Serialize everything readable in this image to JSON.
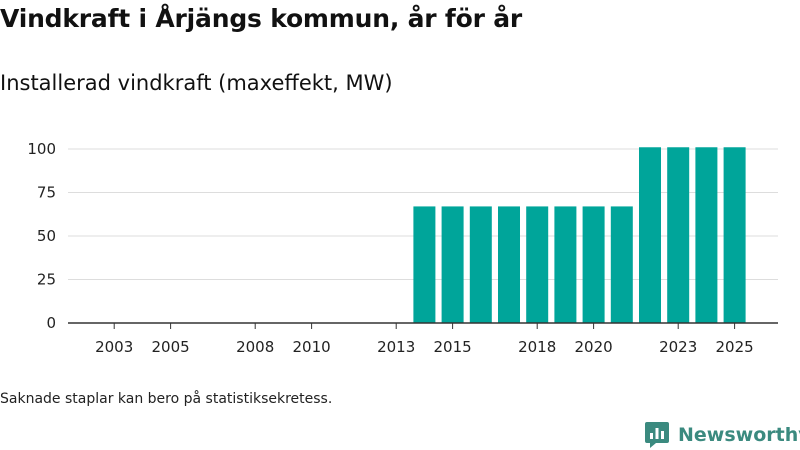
{
  "title": "Vindkraft i Årjängs kommun, år för år",
  "subtitle": "Installerad vindkraft (maxeffekt, MW)",
  "footnote": "Saknade staplar kan bero på statistiksekretess.",
  "brand": {
    "name": "Newsworthy",
    "icon": "bar-chart-logo-icon"
  },
  "colors": {
    "bar": "#00a59a",
    "grid": "#dddddd",
    "axis": "#333333",
    "brand": "#3b8a7f"
  },
  "chart_data": {
    "type": "bar",
    "title": "Vindkraft i Årjängs kommun, år för år",
    "ylabel": "Installerad vindkraft (maxeffekt, MW)",
    "xlabel": "",
    "ylim": [
      0,
      100
    ],
    "yticks": [
      0,
      25,
      50,
      75,
      100
    ],
    "x_tick_labels": [
      "2003",
      "2005",
      "2008",
      "2010",
      "2013",
      "2015",
      "2018",
      "2020",
      "2023",
      "2025"
    ],
    "categories": [
      "2002",
      "2003",
      "2004",
      "2005",
      "2006",
      "2007",
      "2008",
      "2009",
      "2010",
      "2011",
      "2012",
      "2013",
      "2014",
      "2015",
      "2016",
      "2017",
      "2018",
      "2019",
      "2020",
      "2021",
      "2022",
      "2023",
      "2024",
      "2025"
    ],
    "values": [
      0,
      0,
      0,
      0,
      0,
      0,
      0,
      0,
      0,
      0,
      0,
      0,
      67,
      67,
      67,
      67,
      67,
      67,
      67,
      67,
      101,
      101,
      101,
      101
    ]
  }
}
